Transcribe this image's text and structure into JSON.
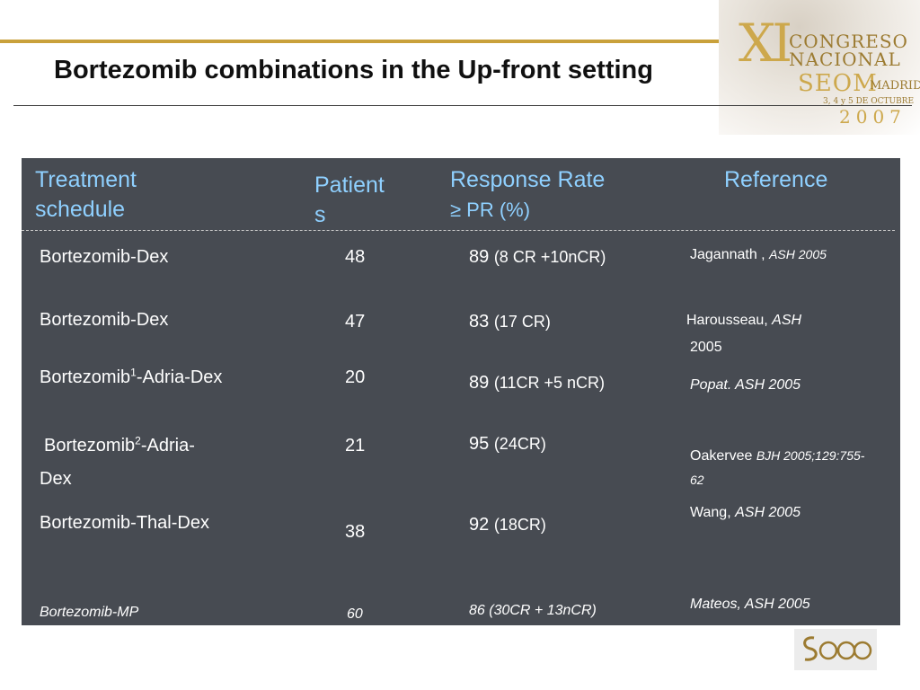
{
  "title": "Bortezomib combinations in the Up-front setting",
  "logo": {
    "mark": "XI",
    "line1": "CONGRESO",
    "line2": "NACIONAL",
    "line3": "SEOM",
    "line3_sub": "MADRID",
    "date": "3, 4 y 5 DE OCTUBRE",
    "year": "2007"
  },
  "table": {
    "headers": {
      "treatment": [
        "Treatment",
        "schedule"
      ],
      "patients": [
        "Patient",
        "s"
      ],
      "response": [
        "Response Rate",
        "≥ PR (%)"
      ],
      "reference": "Reference"
    },
    "rows": [
      {
        "treatment": "Bortezomib-Dex",
        "patients": "48",
        "response": "89",
        "response_detail": "(8 CR +10nCR)",
        "reference": [
          "Jagannath , ",
          "ASH 2005"
        ]
      },
      {
        "treatment": "Bortezomib-Dex",
        "patients": "47",
        "response": "83",
        "response_detail": "(17 CR)",
        "reference": [
          "Harousseau, ",
          "ASH",
          "2005"
        ]
      },
      {
        "treatment": [
          "Bortezomib",
          "1",
          "-Adria-Dex"
        ],
        "patients": "20",
        "response": "89",
        "response_detail": "(11CR +5 nCR)",
        "reference": [
          "Popat.  ASH 2005"
        ]
      },
      {
        "treatment": [
          "Bortezomib",
          "2",
          "-Adria-",
          "Dex"
        ],
        "patients": "21",
        "response": "95",
        "response_detail": "(24CR)",
        "reference": [
          "Oakervee ",
          "BJH  2005;129:755-",
          "62"
        ]
      },
      {
        "treatment": "Bortezomib-Thal-Dex",
        "patients": "38",
        "response": "92",
        "response_detail": "(18CR)",
        "reference": [
          "Wang, ",
          "ASH 2005"
        ]
      },
      {
        "treatment": "Bortezomib-MP",
        "patients": "60",
        "response": "86 (30CR + 13nCR)",
        "reference": [
          "Mateos, ASH 2005"
        ]
      }
    ]
  },
  "footer_logo": "SEOM",
  "colors": {
    "panel": "#474b52",
    "header_text": "#8fd0ff",
    "accent_gold": "#c9a13b"
  }
}
